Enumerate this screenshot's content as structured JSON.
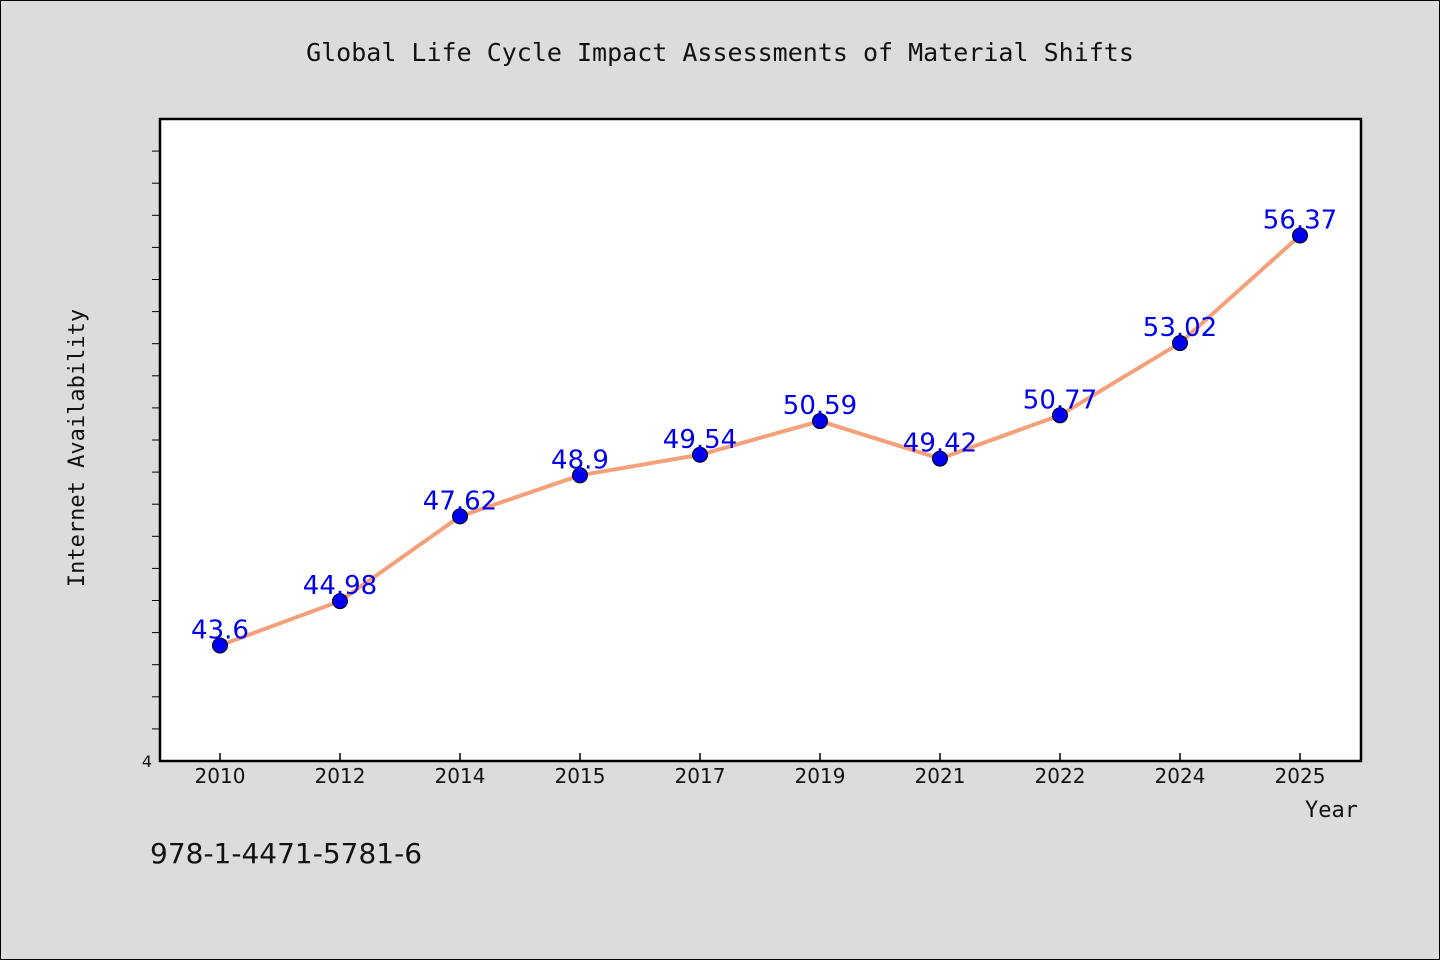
{
  "chart_data": {
    "type": "line",
    "title": "Global Life Cycle Impact Assessments of Material Shifts",
    "xlabel": "Year",
    "ylabel": "Internet Availability",
    "categories": [
      "2010",
      "2012",
      "2014",
      "2015",
      "2017",
      "2019",
      "2021",
      "2022",
      "2024",
      "2025"
    ],
    "series": [
      {
        "name": "",
        "values": [
          43.6,
          44.98,
          47.62,
          48.9,
          49.54,
          50.59,
          49.42,
          50.77,
          53.02,
          56.37
        ],
        "labels": [
          "43.6",
          "44.98",
          "47.62",
          "48.9",
          "49.54",
          "50.59",
          "49.42",
          "50.77",
          "53.02",
          "56.37"
        ]
      }
    ],
    "y_tick_labels": [
      "4"
    ],
    "ylim": [
      40,
      60
    ],
    "grid": false,
    "line_color": "#f4a07a",
    "marker_color": "#0000ee",
    "label_color": "#0000ee"
  },
  "footer": {
    "isbn": "978-1-4471-5781-6"
  }
}
